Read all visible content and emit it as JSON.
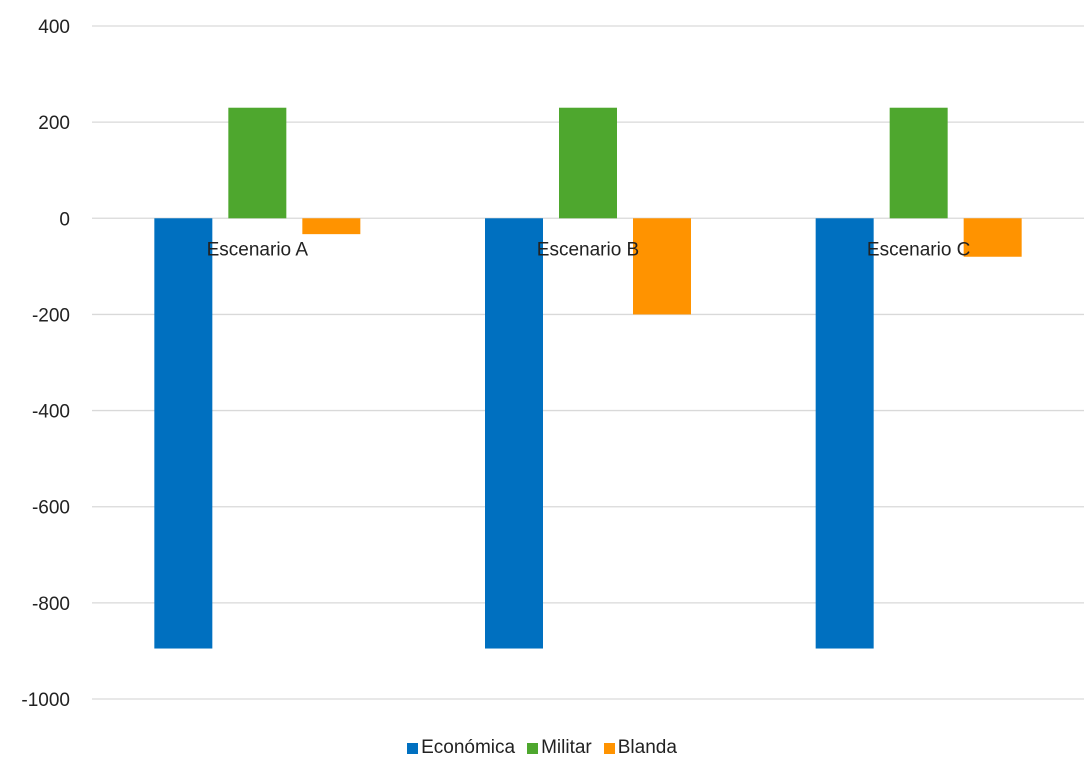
{
  "chart_data": {
    "type": "bar",
    "categories": [
      "Escenario A",
      "Escenario B",
      "Escenario C"
    ],
    "series": [
      {
        "name": "Económica",
        "color": "#0070C0",
        "values": [
          -895,
          -895,
          -895
        ]
      },
      {
        "name": "Militar",
        "color": "#4EA72E",
        "values": [
          230,
          230,
          230
        ]
      },
      {
        "name": "Blanda",
        "color": "#FF9300",
        "values": [
          -33,
          -200,
          -80
        ]
      }
    ],
    "title": "",
    "xlabel": "",
    "ylabel": "",
    "ylim": [
      -1000,
      400
    ],
    "yticks": [
      400,
      200,
      0,
      -200,
      -400,
      -600,
      -800,
      -1000
    ],
    "grid": true,
    "legend_position": "bottom"
  }
}
